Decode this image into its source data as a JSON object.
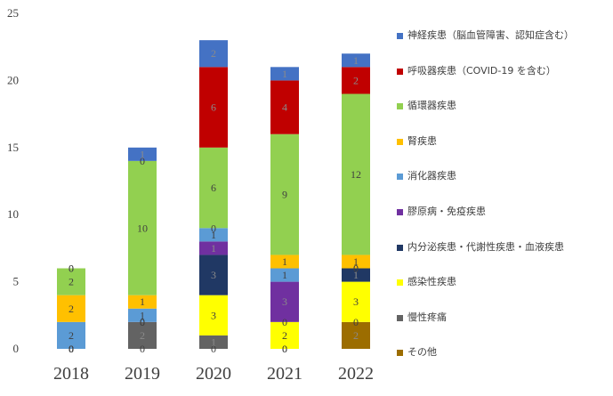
{
  "chart_data": {
    "type": "stacked-bar",
    "categories": [
      "2018",
      "2019",
      "2020",
      "2021",
      "2022"
    ],
    "ylim": [
      0,
      25
    ],
    "yticks": [
      0,
      5,
      10,
      15,
      20,
      25
    ],
    "grid": false,
    "legend_position": "right",
    "series": [
      {
        "name": "その他",
        "color": "#9c6d00",
        "values": [
          0,
          0,
          0,
          0,
          2
        ],
        "labels": [
          "0",
          "0",
          "0",
          "0",
          "2"
        ]
      },
      {
        "name": "慢性疼痛",
        "color": "#636363",
        "values": [
          0,
          2,
          1,
          0,
          0
        ],
        "labels": [
          "0",
          "2",
          "1",
          "0",
          "0"
        ]
      },
      {
        "name": "感染性疾患",
        "color": "#ffff00",
        "values": [
          0,
          0,
          3,
          2,
          3
        ],
        "labels": [
          "0",
          "0",
          "3",
          "2",
          "3"
        ]
      },
      {
        "name": "内分泌疾患・代謝性疾患・血液疾患",
        "color": "#203864",
        "values": [
          0,
          0,
          3,
          0,
          1
        ],
        "labels": [
          "0",
          "0",
          "3",
          "0",
          "1"
        ]
      },
      {
        "name": "膠原病・免疫疾患",
        "color": "#7030a0",
        "values": [
          0,
          0,
          1,
          3,
          0
        ],
        "labels": [
          "0",
          "0",
          "1",
          "3",
          "0"
        ]
      },
      {
        "name": "消化器疾患",
        "color": "#5b9bd5",
        "values": [
          2,
          1,
          1,
          1,
          0
        ],
        "labels": [
          "2",
          "1",
          "1",
          "1",
          "0"
        ]
      },
      {
        "name": "腎疾患",
        "color": "#ffc000",
        "values": [
          2,
          1,
          0,
          1,
          1
        ],
        "labels": [
          "2",
          "1",
          "0",
          "1",
          "1"
        ]
      },
      {
        "name": "循環器疾患",
        "color": "#92d050",
        "values": [
          2,
          10,
          6,
          9,
          12
        ],
        "labels": [
          "2",
          "10",
          "6",
          "9",
          "12"
        ]
      },
      {
        "name": "呼吸器疾患（COVID-19 を含む）",
        "color": "#c00000",
        "values": [
          0,
          0,
          6,
          4,
          2
        ],
        "labels": [
          "0",
          "0",
          "6",
          "4",
          "2"
        ]
      },
      {
        "name": "神経疾患（脳血管障害、認知症含む）",
        "color": "#4472c4",
        "values": [
          0,
          1,
          2,
          1,
          1
        ],
        "labels": [
          "0",
          "1",
          "2",
          "1",
          "1"
        ]
      }
    ],
    "title": "",
    "xlabel": "",
    "ylabel": ""
  }
}
